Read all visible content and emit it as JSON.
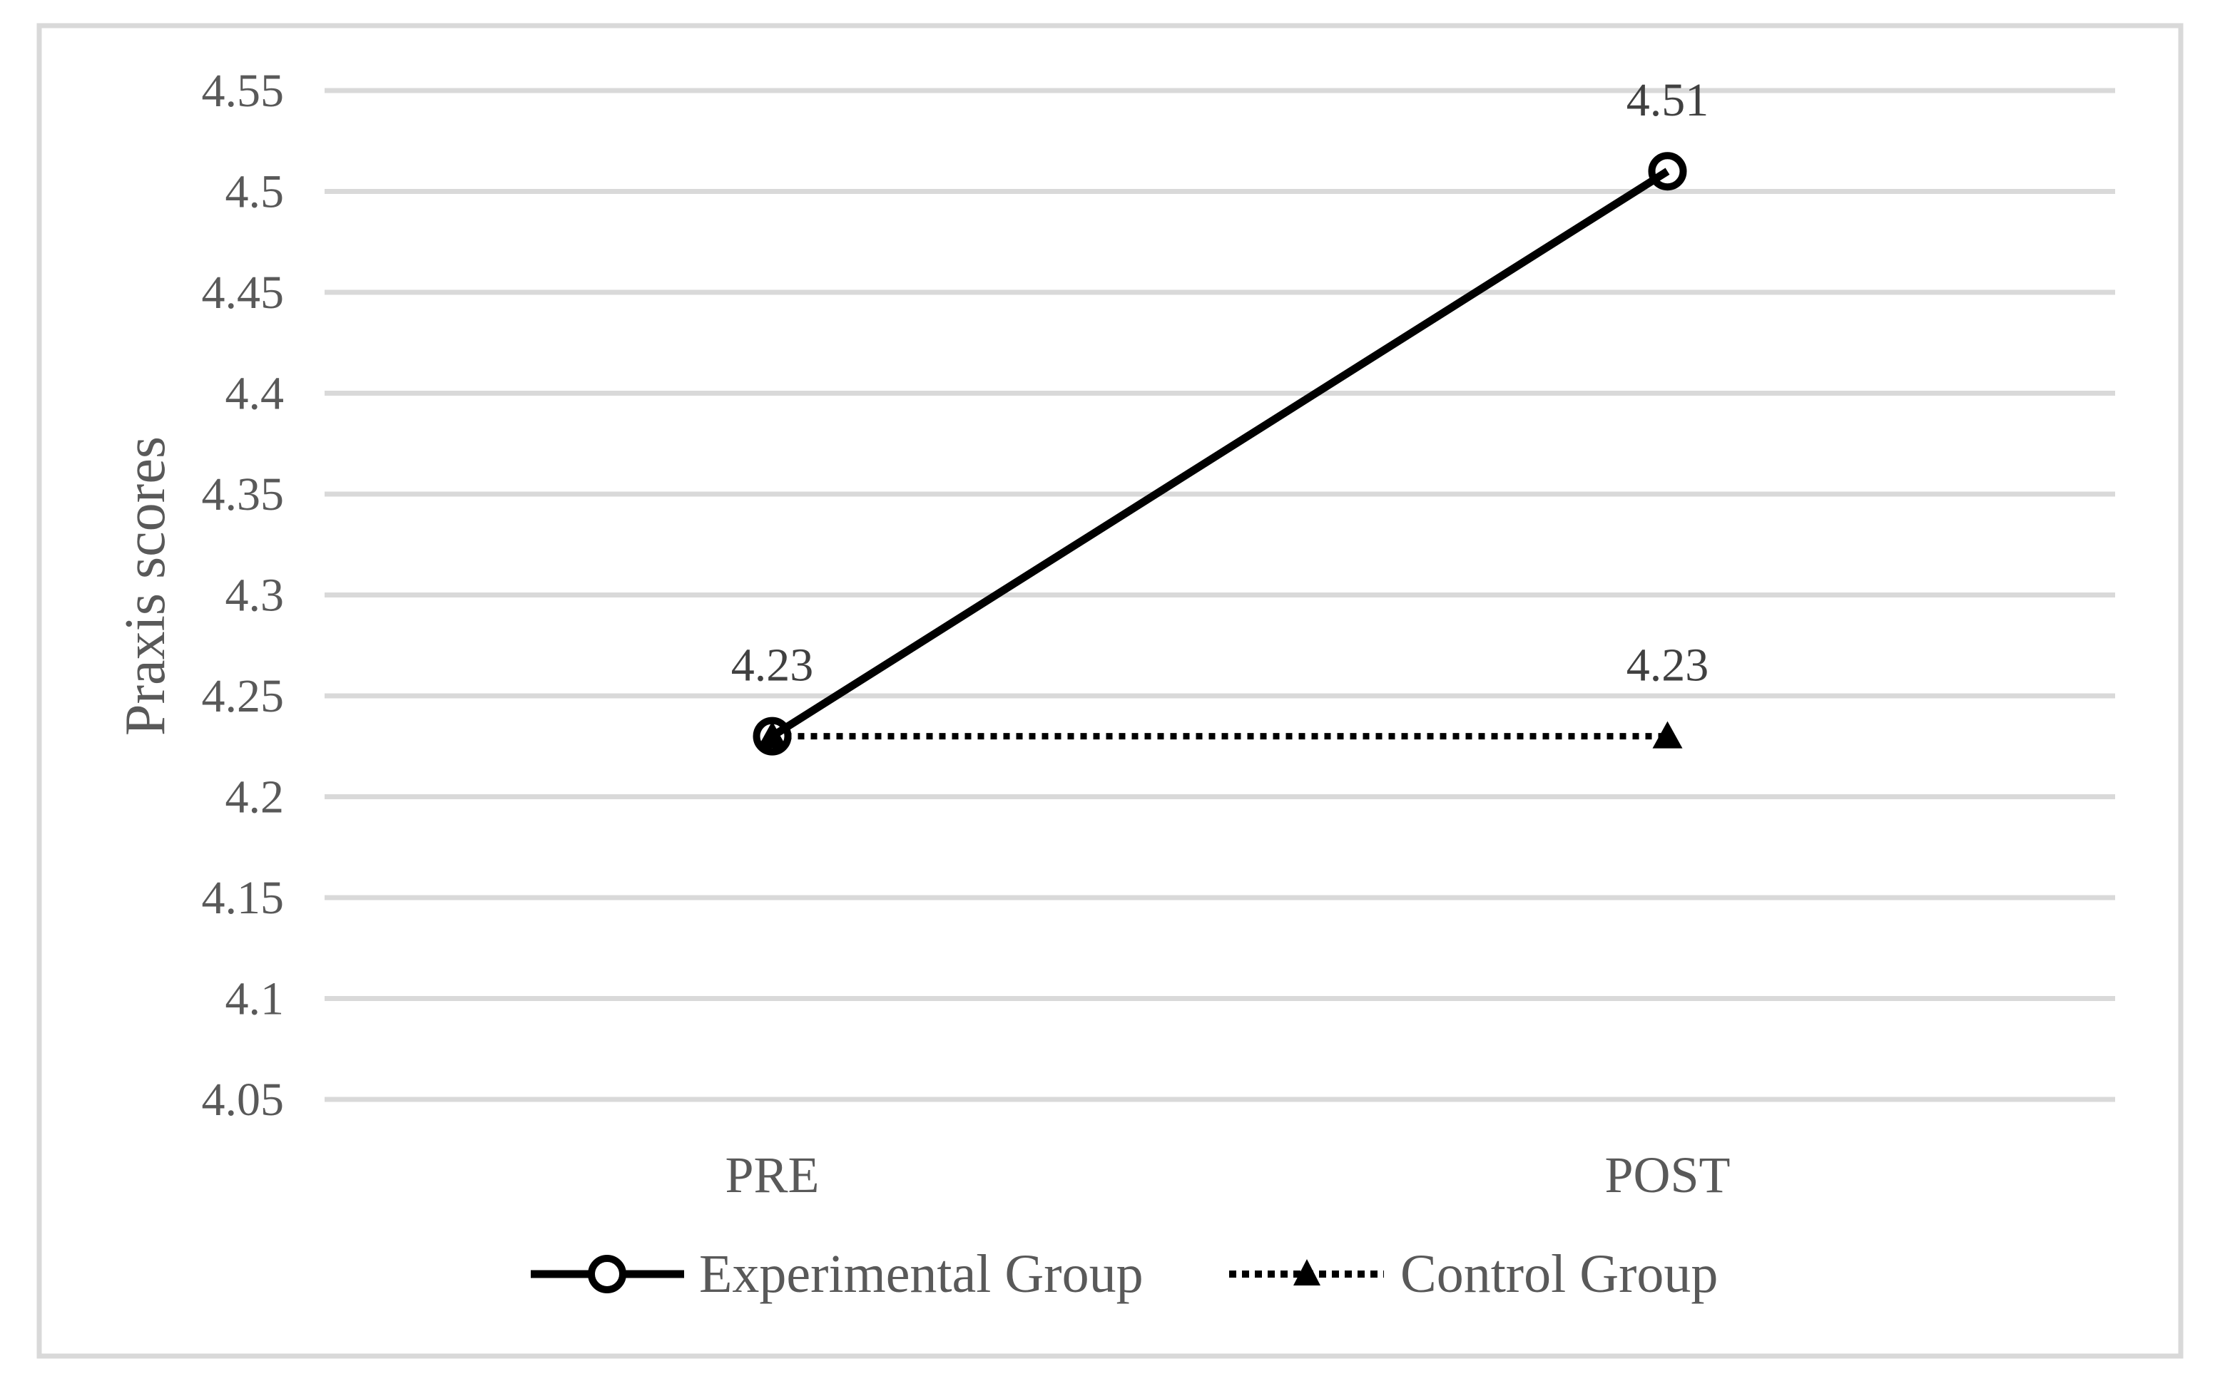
{
  "chart_data": {
    "type": "line",
    "title": "",
    "ylabel": "Praxis scores",
    "xlabel": "",
    "categories": [
      "PRE",
      "POST"
    ],
    "series": [
      {
        "name": "Experimental Group",
        "values": [
          4.23,
          4.51
        ],
        "data_labels": [
          "4.23",
          "4.51"
        ],
        "line_style": "solid",
        "marker": "open-circle",
        "color": "#000000"
      },
      {
        "name": "Control Group",
        "values": [
          4.23,
          4.23
        ],
        "data_labels": [
          "",
          "4.23"
        ],
        "line_style": "dotted",
        "marker": "filled-triangle",
        "color": "#000000"
      }
    ],
    "ylim": [
      4.05,
      4.55
    ],
    "ytick_step": 0.05,
    "yticks": [
      "4.55",
      "4.5",
      "4.45",
      "4.4",
      "4.35",
      "4.3",
      "4.25",
      "4.2",
      "4.15",
      "4.1",
      "4.05"
    ],
    "grid": true,
    "legend_position": "bottom",
    "style": {
      "line_color": "#000000",
      "gridline_color": "#d9d9d9",
      "frame_color": "#d9d9d9",
      "axis_text_color": "#595959",
      "data_label_color": "#404040"
    }
  }
}
